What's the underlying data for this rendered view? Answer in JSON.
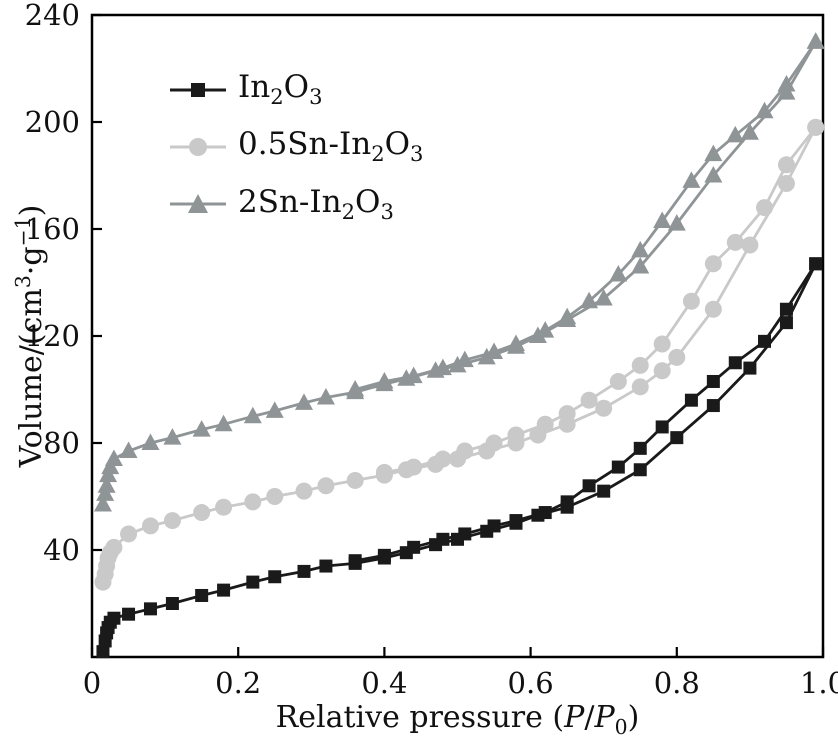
{
  "chart_data": {
    "type": "line",
    "title": "",
    "xlabel": "Relative pressure (P/P₀)",
    "ylabel": "Volume/(cm³·g⁻¹)",
    "xlim": [
      0,
      1.0
    ],
    "ylim": [
      0,
      240
    ],
    "x_ticks": [
      0,
      0.2,
      0.4,
      0.6,
      0.8,
      1.0
    ],
    "x_tick_labels": [
      "0",
      "0.2",
      "0.4",
      "0.6",
      "0.8",
      "1.0"
    ],
    "y_ticks": [
      40,
      80,
      120,
      160,
      200,
      240
    ],
    "y_tick_labels": [
      "40",
      "80",
      "120",
      "160",
      "200",
      "240"
    ],
    "grid": false,
    "legend_position": "upper-left-inside",
    "frame_color": "#000000",
    "series": [
      {
        "name": "In₂O₃",
        "marker": "square",
        "color": "#1a1a1a",
        "adsorption": [
          [
            0.015,
            2
          ],
          [
            0.018,
            6
          ],
          [
            0.02,
            9
          ],
          [
            0.022,
            11
          ],
          [
            0.025,
            13
          ],
          [
            0.03,
            14.5
          ],
          [
            0.05,
            16
          ],
          [
            0.08,
            18
          ],
          [
            0.11,
            20
          ],
          [
            0.15,
            23
          ],
          [
            0.18,
            25
          ],
          [
            0.22,
            28
          ],
          [
            0.25,
            30
          ],
          [
            0.29,
            32
          ],
          [
            0.32,
            34
          ],
          [
            0.36,
            35
          ],
          [
            0.4,
            37
          ],
          [
            0.43,
            39
          ],
          [
            0.47,
            42
          ],
          [
            0.5,
            44
          ],
          [
            0.54,
            47
          ],
          [
            0.58,
            50
          ],
          [
            0.61,
            53
          ],
          [
            0.65,
            56
          ],
          [
            0.7,
            62
          ],
          [
            0.75,
            70
          ],
          [
            0.8,
            82
          ],
          [
            0.85,
            94
          ],
          [
            0.9,
            108
          ],
          [
            0.95,
            125
          ],
          [
            0.99,
            147
          ]
        ],
        "desorption": [
          [
            0.99,
            147
          ],
          [
            0.95,
            130
          ],
          [
            0.92,
            118
          ],
          [
            0.88,
            110
          ],
          [
            0.85,
            103
          ],
          [
            0.82,
            96
          ],
          [
            0.78,
            86
          ],
          [
            0.75,
            78
          ],
          [
            0.72,
            71
          ],
          [
            0.68,
            64
          ],
          [
            0.65,
            58
          ],
          [
            0.62,
            54
          ],
          [
            0.58,
            51
          ],
          [
            0.55,
            49
          ],
          [
            0.51,
            46
          ],
          [
            0.48,
            44
          ],
          [
            0.44,
            41
          ],
          [
            0.4,
            38
          ],
          [
            0.36,
            36
          ]
        ]
      },
      {
        "name": "0.5Sn-In₂O₃",
        "marker": "circle",
        "color": "#c9c9c9",
        "adsorption": [
          [
            0.015,
            28
          ],
          [
            0.018,
            31
          ],
          [
            0.02,
            34
          ],
          [
            0.022,
            37
          ],
          [
            0.025,
            39
          ],
          [
            0.03,
            41
          ],
          [
            0.05,
            46
          ],
          [
            0.08,
            49
          ],
          [
            0.11,
            51
          ],
          [
            0.15,
            54
          ],
          [
            0.18,
            56
          ],
          [
            0.22,
            58
          ],
          [
            0.25,
            60
          ],
          [
            0.29,
            62
          ],
          [
            0.32,
            64
          ],
          [
            0.36,
            66
          ],
          [
            0.4,
            68
          ],
          [
            0.43,
            70
          ],
          [
            0.47,
            72
          ],
          [
            0.5,
            74
          ],
          [
            0.54,
            77
          ],
          [
            0.58,
            80
          ],
          [
            0.61,
            83
          ],
          [
            0.65,
            87
          ],
          [
            0.7,
            93
          ],
          [
            0.75,
            101
          ],
          [
            0.78,
            107
          ],
          [
            0.8,
            112
          ],
          [
            0.85,
            130
          ],
          [
            0.9,
            154
          ],
          [
            0.95,
            177
          ],
          [
            0.99,
            198
          ]
        ],
        "desorption": [
          [
            0.99,
            198
          ],
          [
            0.95,
            184
          ],
          [
            0.92,
            168
          ],
          [
            0.88,
            155
          ],
          [
            0.85,
            147
          ],
          [
            0.82,
            133
          ],
          [
            0.78,
            117
          ],
          [
            0.75,
            109
          ],
          [
            0.72,
            103
          ],
          [
            0.68,
            96
          ],
          [
            0.65,
            91
          ],
          [
            0.62,
            87
          ],
          [
            0.58,
            83
          ],
          [
            0.55,
            80
          ],
          [
            0.51,
            77
          ],
          [
            0.48,
            74
          ],
          [
            0.44,
            71
          ],
          [
            0.4,
            69
          ]
        ]
      },
      {
        "name": "2Sn-In₂O₃",
        "marker": "triangle",
        "color": "#8f9496",
        "adsorption": [
          [
            0.015,
            57
          ],
          [
            0.018,
            61
          ],
          [
            0.02,
            64
          ],
          [
            0.022,
            68
          ],
          [
            0.025,
            71
          ],
          [
            0.03,
            74
          ],
          [
            0.05,
            77
          ],
          [
            0.08,
            80
          ],
          [
            0.11,
            82
          ],
          [
            0.15,
            85
          ],
          [
            0.18,
            87
          ],
          [
            0.22,
            90
          ],
          [
            0.25,
            92
          ],
          [
            0.29,
            95
          ],
          [
            0.32,
            97
          ],
          [
            0.36,
            99
          ],
          [
            0.4,
            102
          ],
          [
            0.43,
            104
          ],
          [
            0.47,
            107
          ],
          [
            0.5,
            109
          ],
          [
            0.54,
            112
          ],
          [
            0.58,
            116
          ],
          [
            0.61,
            120
          ],
          [
            0.65,
            126
          ],
          [
            0.7,
            134
          ],
          [
            0.75,
            146
          ],
          [
            0.8,
            162
          ],
          [
            0.85,
            180
          ],
          [
            0.9,
            196
          ],
          [
            0.95,
            211
          ],
          [
            0.99,
            230
          ]
        ],
        "desorption": [
          [
            0.99,
            230
          ],
          [
            0.95,
            214
          ],
          [
            0.92,
            204
          ],
          [
            0.88,
            195
          ],
          [
            0.85,
            188
          ],
          [
            0.82,
            178
          ],
          [
            0.78,
            163
          ],
          [
            0.75,
            152
          ],
          [
            0.72,
            143
          ],
          [
            0.68,
            133
          ],
          [
            0.65,
            127
          ],
          [
            0.62,
            122
          ],
          [
            0.58,
            117
          ],
          [
            0.55,
            114
          ],
          [
            0.51,
            111
          ],
          [
            0.48,
            108
          ],
          [
            0.44,
            105
          ],
          [
            0.4,
            103
          ],
          [
            0.36,
            100
          ]
        ]
      }
    ]
  },
  "legend": {
    "items": [
      {
        "pre": "In",
        "sub1": "2",
        "mid": "O",
        "sub2": "3"
      },
      {
        "pre": "0.5Sn-In",
        "sub1": "2",
        "mid": "O",
        "sub2": "3"
      },
      {
        "pre": "2Sn-In",
        "sub1": "2",
        "mid": "O",
        "sub2": "3"
      }
    ]
  },
  "axis": {
    "ylabel_parts": {
      "pre": "Volume/(cm",
      "sup1": "3",
      "mid": "·g",
      "sup2": "−1",
      "post": ")"
    },
    "xlabel_parts": {
      "pre": "Relative pressure (",
      "p1": "P",
      "slash": "/",
      "p2": "P",
      "sub": "0",
      "post": ")"
    }
  }
}
